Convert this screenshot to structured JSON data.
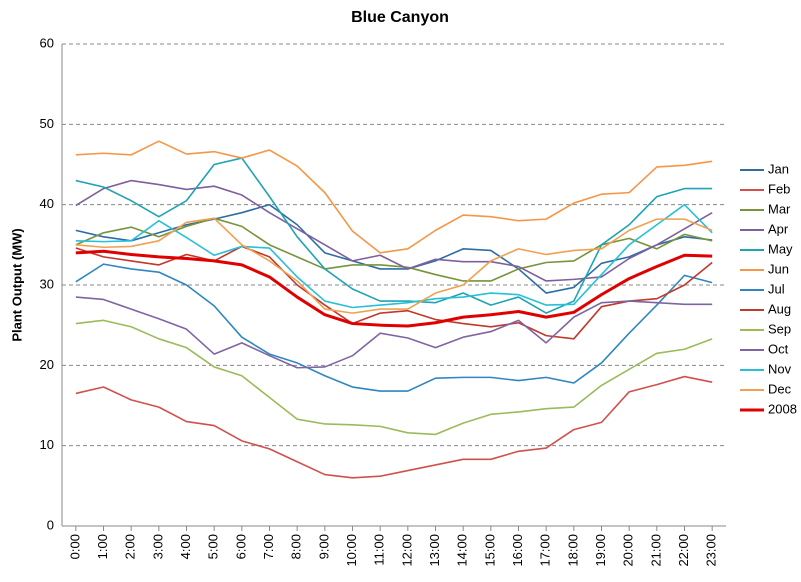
{
  "chart_data": {
    "type": "line",
    "title": "Blue Canyon",
    "y_label": "Plant Output (MW)",
    "categories": [
      "0:00",
      "1:00",
      "2:00",
      "3:00",
      "4:00",
      "5:00",
      "6:00",
      "7:00",
      "8:00",
      "9:00",
      "10:00",
      "11:00",
      "12:00",
      "13:00",
      "14:00",
      "15:00",
      "16:00",
      "17:00",
      "18:00",
      "19:00",
      "20:00",
      "21:00",
      "22:00",
      "23:00"
    ],
    "ylim": [
      0,
      60
    ],
    "yticks": [
      0,
      10,
      20,
      30,
      40,
      50,
      60
    ],
    "grid": true,
    "legend": "right",
    "series": [
      {
        "name": "Jan",
        "color": "#2e6da4",
        "values": [
          36.8,
          36,
          35.5,
          36.5,
          37.5,
          38.2,
          39,
          40,
          37.5,
          34,
          33,
          32,
          32,
          33,
          34.5,
          34.3,
          32,
          29,
          29.7,
          32.7,
          33.5,
          35,
          36,
          35.6
        ]
      },
      {
        "name": "Feb",
        "color": "#d0504d",
        "values": [
          16.5,
          17.3,
          15.7,
          14.8,
          13,
          12.5,
          10.6,
          9.6,
          8,
          6.4,
          6,
          6.2,
          6.9,
          7.6,
          8.3,
          8.3,
          9.3,
          9.7,
          12,
          12.9,
          16.7,
          17.6,
          18.6,
          17.9
        ]
      },
      {
        "name": "Mar",
        "color": "#77933c",
        "values": [
          35,
          36.5,
          37.2,
          36,
          37.3,
          38.3,
          37.3,
          35,
          33.5,
          32,
          32.5,
          32.5,
          32.2,
          31.3,
          30.5,
          30.5,
          32,
          32.8,
          33,
          35,
          35.8,
          34.5,
          36.3,
          35.5
        ]
      },
      {
        "name": "Apr",
        "color": "#7f5f9e",
        "values": [
          39.9,
          42,
          43,
          42.5,
          41.9,
          42.3,
          41.2,
          39,
          37,
          35,
          33,
          33.7,
          32,
          33.2,
          32.9,
          32.9,
          32.3,
          30.5,
          30.7,
          31,
          33.3,
          35,
          37,
          39
        ]
      },
      {
        "name": "May",
        "color": "#1fa3b5",
        "values": [
          43,
          42.2,
          40.5,
          38.5,
          40.5,
          45,
          45.8,
          41,
          36,
          32,
          29.5,
          28,
          28,
          27.8,
          29,
          27.5,
          28.5,
          26.5,
          28,
          35,
          37.5,
          41,
          42,
          42
        ]
      },
      {
        "name": "Jun",
        "color": "#f79646",
        "values": [
          46.2,
          46.4,
          46.2,
          47.9,
          46.3,
          46.6,
          45.8,
          46.8,
          44.8,
          41.5,
          36.7,
          34,
          34.5,
          36.8,
          38.7,
          38.5,
          38,
          38.2,
          40.2,
          41.3,
          41.5,
          44.7,
          44.9,
          45.4
        ]
      },
      {
        "name": "Jul",
        "color": "#2f86c1",
        "values": [
          30.4,
          32.6,
          32,
          31.6,
          30,
          27.4,
          23.5,
          21.4,
          20.3,
          18.7,
          17.3,
          16.8,
          16.8,
          18.4,
          18.5,
          18.5,
          18.1,
          18.5,
          17.8,
          20.3,
          24,
          27.5,
          31.2,
          30.3
        ]
      },
      {
        "name": "Aug",
        "color": "#c0392b",
        "values": [
          34.6,
          33.5,
          33,
          32.5,
          33.8,
          33,
          34.8,
          33.5,
          30,
          27.5,
          25.2,
          26.5,
          26.8,
          25.7,
          25.2,
          24.8,
          25.3,
          23.7,
          23.3,
          27.3,
          28,
          28.3,
          30,
          32.8
        ]
      },
      {
        "name": "Sep",
        "color": "#9bbb59",
        "values": [
          25.2,
          25.6,
          24.8,
          23.3,
          22.2,
          19.8,
          18.7,
          16,
          13.3,
          12.7,
          12.6,
          12.4,
          11.6,
          11.4,
          12.8,
          13.9,
          14.2,
          14.6,
          14.8,
          17.5,
          19.5,
          21.5,
          22,
          23.3
        ]
      },
      {
        "name": "Oct",
        "color": "#8064a2",
        "values": [
          28.5,
          28.2,
          27,
          25.8,
          24.5,
          21.4,
          22.8,
          21.2,
          19.7,
          19.8,
          21.2,
          24,
          23.4,
          22.2,
          23.5,
          24.2,
          25.6,
          22.8,
          26,
          27.8,
          28,
          27.8,
          27.6,
          27.6
        ]
      },
      {
        "name": "Nov",
        "color": "#27c0d8",
        "values": [
          35.5,
          35.4,
          35.5,
          38,
          35.9,
          33.7,
          34.8,
          34.6,
          31,
          28,
          27.2,
          27.5,
          27.8,
          28.3,
          28.5,
          29,
          28.8,
          27.5,
          27.6,
          31.3,
          35,
          37.5,
          40,
          36.5
        ]
      },
      {
        "name": "Dec",
        "color": "#f0a050",
        "values": [
          35,
          34.7,
          34.8,
          35.5,
          37.8,
          38.3,
          35,
          33,
          30.5,
          27,
          26.5,
          27,
          27,
          29,
          30,
          33,
          34.5,
          33.8,
          34.3,
          34.5,
          36.8,
          38.2,
          38.2,
          36.8
        ]
      },
      {
        "name": "2008",
        "color": "#e00000",
        "width": 3,
        "values": [
          34,
          34.2,
          33.8,
          33.5,
          33.3,
          33,
          32.5,
          31,
          28.5,
          26.3,
          25.2,
          25,
          24.9,
          25.3,
          26,
          26.3,
          26.7,
          26,
          26.6,
          28.8,
          30.8,
          32.3,
          33.7,
          33.6
        ]
      }
    ]
  }
}
